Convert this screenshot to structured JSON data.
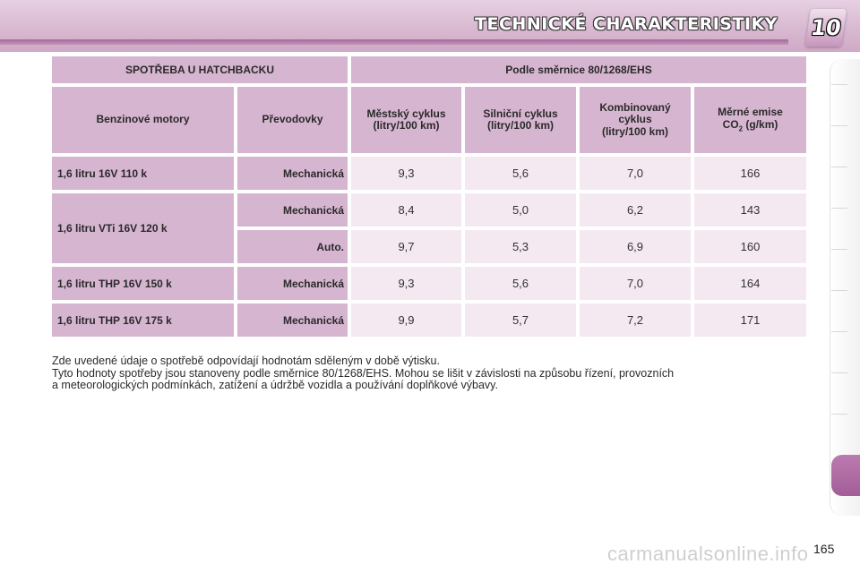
{
  "header": {
    "title": "TECHNICKÉ CHARAKTERISTIKY",
    "chapter": "10"
  },
  "table": {
    "title_left": "SPOTŘEBA U HATCHBACKU",
    "title_right": "Podle směrnice 80/1268/EHS",
    "columns": {
      "engine": "Benzinové motory",
      "gearbox": "Převodovky",
      "urban": [
        "Městský cyklus",
        "(litry/100 km)"
      ],
      "extra_urban": [
        "Silniční cyklus",
        "(litry/100 km)"
      ],
      "combined": [
        "Kombinovaný",
        "cyklus",
        "(litry/100 km)"
      ],
      "co2": [
        "Měrné emise",
        "CO",
        "2",
        " (g/km)"
      ]
    },
    "rows": [
      {
        "engine": "1,6 litru 16V 110 k",
        "gearbox": "Mechanická",
        "urban": "9,3",
        "extra_urban": "5,6",
        "combined": "7,0",
        "co2": "166"
      },
      {
        "engine": "1,6 litru VTi 16V 120 k",
        "gearbox": "Mechanická",
        "urban": "8,4",
        "extra_urban": "5,0",
        "combined": "6,2",
        "co2": "143"
      },
      {
        "engine": "",
        "gearbox": "Auto.",
        "urban": "9,7",
        "extra_urban": "5,3",
        "combined": "6,9",
        "co2": "160"
      },
      {
        "engine": "1,6 litru THP 16V 150 k",
        "gearbox": "Mechanická",
        "urban": "9,3",
        "extra_urban": "5,6",
        "combined": "7,0",
        "co2": "164"
      },
      {
        "engine": "1,6 litru THP 16V 175 k",
        "gearbox": "Mechanická",
        "urban": "9,9",
        "extra_urban": "5,7",
        "combined": "7,2",
        "co2": "171"
      }
    ]
  },
  "note": [
    "Zde uvedené údaje o spotřebě odpovídají hodnotám sděleným v době výtisku.",
    "Tyto hodnoty spotřeby jsou stanoveny podle směrnice 80/1268/EHS. Mohou se lišit v závislosti na způsobu řízení, provozních",
    "a meteorologických podmínkách, zatížení a údržbě vozidla a používání doplňkové výbavy."
  ],
  "page_number": "165",
  "watermark": "carmanualsonline.info",
  "colors": {
    "header_bg": "#d9b9d1",
    "cell_header": "#d6b5d0",
    "cell_value": "#f4e8f1",
    "active_tab": "#a35d97"
  }
}
